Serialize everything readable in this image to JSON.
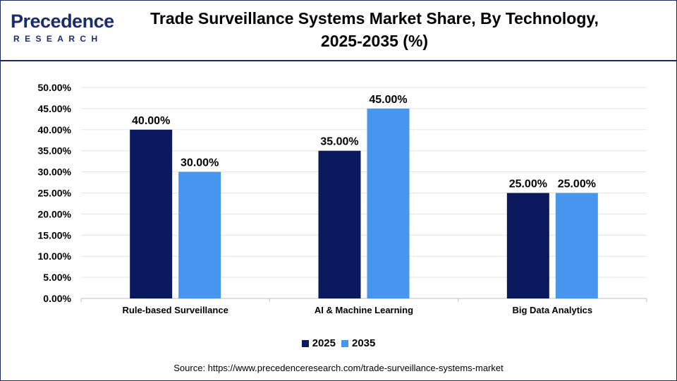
{
  "header": {
    "logo_word": "Precedence",
    "logo_sub": "RESEARCH",
    "title_line1": "Trade Surveillance Systems Market Share, By Technology,",
    "title_line2": "2025-2035 (%)"
  },
  "source": "Source: https://www.precedenceresearch.com/trade-surveillance-systems-market",
  "chart_data": {
    "type": "bar",
    "title": "Trade Surveillance Systems Market Share, By Technology, 2025-2035 (%)",
    "categories": [
      "Rule-based Surveillance",
      "AI & Machine Learning",
      "Big Data Analytics"
    ],
    "series": [
      {
        "name": "2025",
        "values": [
          40.0,
          35.0,
          25.0
        ],
        "color": "#0b1a5c"
      },
      {
        "name": "2035",
        "values": [
          30.0,
          45.0,
          25.0
        ],
        "color": "#4796ee"
      }
    ],
    "value_labels": [
      [
        "40.00%",
        "35.00%",
        "25.00%"
      ],
      [
        "30.00%",
        "45.00%",
        "25.00%"
      ]
    ],
    "y_ticks": [
      "0.00%",
      "5.00%",
      "10.00%",
      "15.00%",
      "20.00%",
      "25.00%",
      "30.00%",
      "35.00%",
      "40.00%",
      "45.00%",
      "50.00%"
    ],
    "ylim": [
      0,
      50
    ],
    "y_step": 5,
    "grid": true,
    "legend_position": "bottom",
    "xlabel": "",
    "ylabel": ""
  }
}
